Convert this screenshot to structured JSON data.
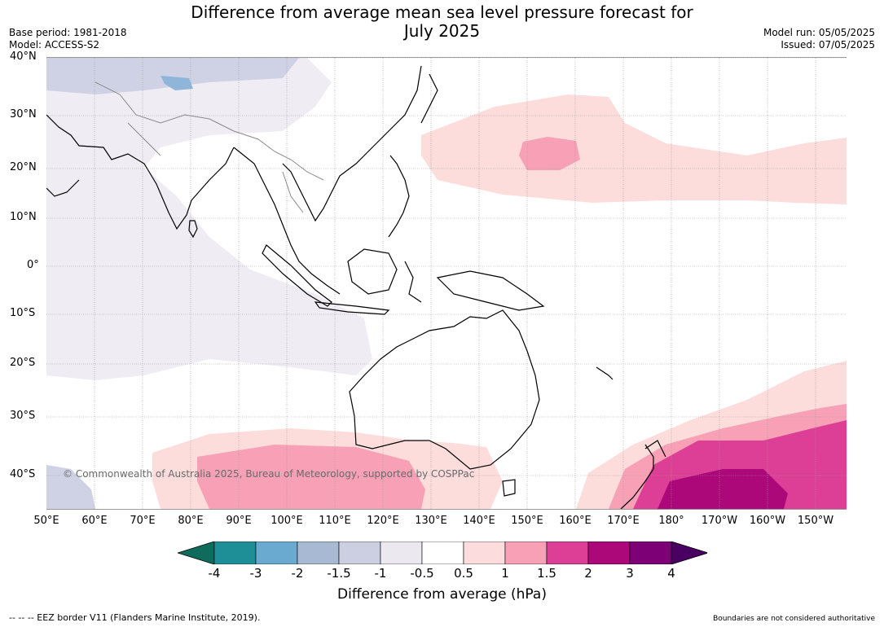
{
  "title_line1": "Difference from average mean sea level pressure forecast for",
  "title_line2": "July 2025",
  "base_period": "Base period: 1981-2018",
  "model": "Model: ACCESS-S2",
  "model_run": "Model run: 05/05/2025",
  "issued": "Issued: 07/05/2025",
  "copyright": "© Commonwealth of Australia 2025, Bureau of Meteorology, supported by COSPPac",
  "lat_labels": [
    "40°N",
    "30°N",
    "20°N",
    "10°N",
    "0°",
    "10°S",
    "20°S",
    "30°S",
    "40°S"
  ],
  "lon_labels": [
    "50°E",
    "60°E",
    "70°E",
    "80°E",
    "90°E",
    "100°E",
    "110°E",
    "120°E",
    "130°E",
    "140°E",
    "150°E",
    "160°E",
    "170°E",
    "180°",
    "170°W",
    "160°W",
    "150°W"
  ],
  "colorbar": {
    "ticks": [
      "-4",
      "-3",
      "-2",
      "-1.5",
      "-1",
      "-0.5",
      "0.5",
      "1",
      "1.5",
      "2",
      "3",
      "4"
    ],
    "colors": [
      "#0f6b5b",
      "#1e8f96",
      "#6aaad0",
      "#a8b9d4",
      "#cccfe2",
      "#ece8f0",
      "#ffffff",
      "#fcdcdc",
      "#f7a0b6",
      "#de3f96",
      "#ad087a",
      "#7e0077",
      "#4a0063"
    ],
    "label": "Difference from average (hPa)"
  },
  "footer_left": "--  --  -- EEZ border V11 (Flanders Marine Institute, 2019).",
  "footer_right": "Boundaries are not considered authoritative"
}
